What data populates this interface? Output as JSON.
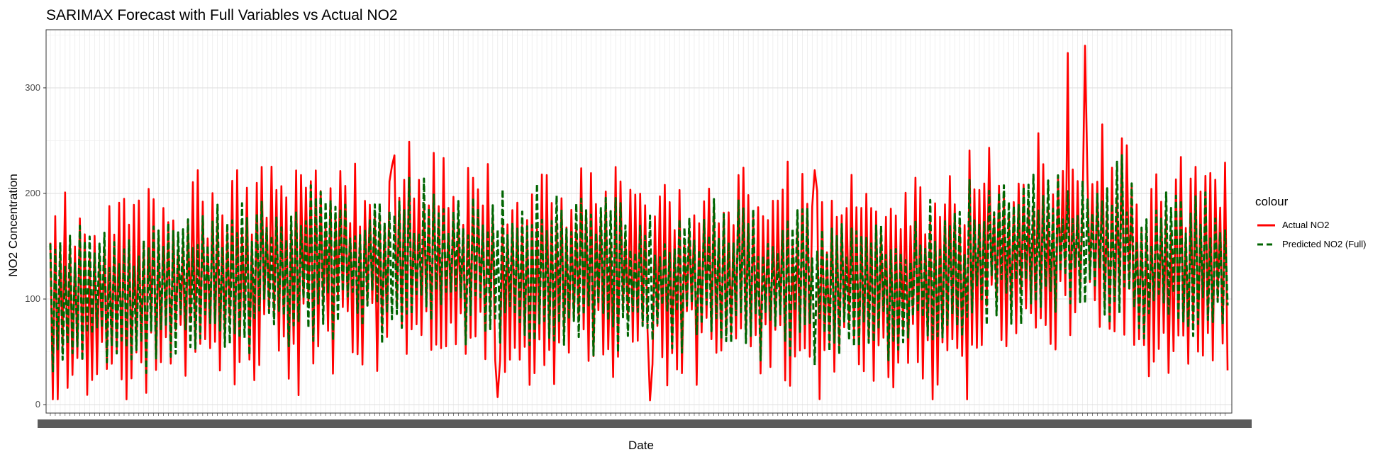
{
  "chart_data": {
    "type": "line",
    "title": "SARIMAX Forecast with Full Variables vs Actual NO2",
    "xlabel": "Date",
    "ylabel": "NO2 Concentration",
    "ylim": [
      -8,
      355
    ],
    "y_ticks": [
      0,
      100,
      200,
      300
    ],
    "grid": true,
    "legend": {
      "title": "colour",
      "placement": "right",
      "entries": [
        "Actual NO2",
        "Predicted NO2 (Full)"
      ]
    },
    "x_tick_labels_note": "overlapping dense date labels (unreadable)",
    "n_dates": 480,
    "anchor_values": {
      "actual_max_spikes": [
        {
          "index": 0.865,
          "value": 333
        },
        {
          "index": 0.878,
          "value": 340
        },
        {
          "index": 0.65,
          "value": 222
        },
        {
          "index": 0.125,
          "value": 222
        },
        {
          "index": 0.29,
          "value": 226
        }
      ],
      "actual_min_dips": [
        {
          "index": 0.51,
          "value": 4
        },
        {
          "index": 0.21,
          "value": 9
        },
        {
          "index": 0.38,
          "value": 7
        }
      ]
    },
    "series": [
      {
        "name": "Actual NO2",
        "color": "#ff0000",
        "style": "solid"
      },
      {
        "name": "Predicted NO2 (Full)",
        "color": "#006400",
        "style": "dashed"
      }
    ]
  }
}
